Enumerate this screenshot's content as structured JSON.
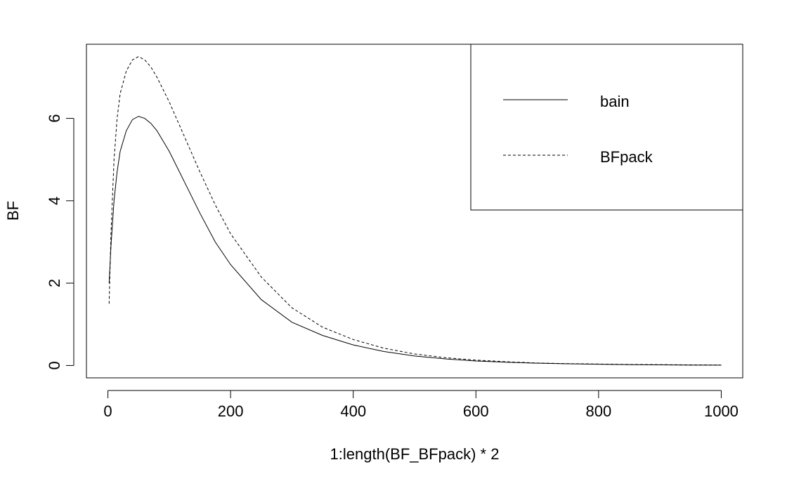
{
  "chart_data": {
    "type": "line",
    "title": "",
    "xlabel": "1:length(BF_BFpack) * 2",
    "ylabel": "BF",
    "xlim": [
      -35,
      1035
    ],
    "ylim": [
      -0.3,
      7.8
    ],
    "xticks": [
      0,
      200,
      400,
      600,
      800,
      1000
    ],
    "xtick_labels": [
      "0",
      "200",
      "400",
      "600",
      "800",
      "1000"
    ],
    "yticks": [
      0,
      2,
      4,
      6
    ],
    "ytick_labels": [
      "0",
      "2",
      "4",
      "6"
    ],
    "grid": false,
    "legend_position": "top-right",
    "series": [
      {
        "name": "bain",
        "line_style": "solid",
        "x": [
          2,
          5,
          10,
          15,
          20,
          30,
          40,
          50,
          60,
          70,
          80,
          100,
          125,
          150,
          175,
          200,
          250,
          300,
          350,
          400,
          450,
          500,
          550,
          600,
          650,
          700,
          750,
          800,
          850,
          900,
          950,
          1000
        ],
        "y": [
          2.0,
          2.9,
          4.0,
          4.7,
          5.2,
          5.7,
          5.97,
          6.05,
          6.0,
          5.88,
          5.7,
          5.2,
          4.45,
          3.7,
          3.0,
          2.45,
          1.6,
          1.05,
          0.73,
          0.5,
          0.34,
          0.23,
          0.16,
          0.11,
          0.08,
          0.055,
          0.04,
          0.03,
          0.02,
          0.015,
          0.01,
          0.01
        ]
      },
      {
        "name": "BFpack",
        "line_style": "dashed",
        "x": [
          2,
          5,
          10,
          15,
          20,
          30,
          40,
          50,
          60,
          70,
          80,
          100,
          125,
          150,
          175,
          200,
          250,
          300,
          350,
          400,
          450,
          500,
          550,
          600,
          650,
          700,
          750,
          800,
          850,
          900,
          950,
          1000
        ],
        "y": [
          1.5,
          3.2,
          5.0,
          6.0,
          6.6,
          7.15,
          7.42,
          7.5,
          7.42,
          7.25,
          7.0,
          6.4,
          5.55,
          4.7,
          3.9,
          3.2,
          2.15,
          1.4,
          0.93,
          0.63,
          0.42,
          0.28,
          0.19,
          0.13,
          0.09,
          0.06,
          0.045,
          0.035,
          0.025,
          0.02,
          0.015,
          0.01
        ]
      }
    ]
  }
}
